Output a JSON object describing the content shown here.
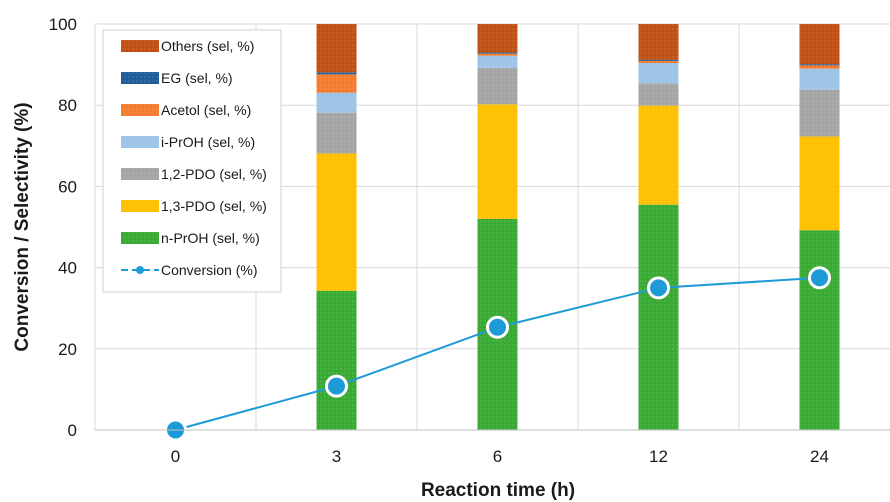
{
  "chart_data": {
    "type": "bar",
    "stacked": true,
    "categories": [
      "0",
      "3",
      "6",
      "12",
      "24"
    ],
    "xlabel": "Reaction time (h)",
    "ylabel": "Conversion / Selectivity (%)",
    "ylim": [
      0,
      100
    ],
    "yticks": [
      "0",
      "20",
      "40",
      "60",
      "80",
      "100"
    ],
    "grid": true,
    "legend_position": "top-left",
    "series": [
      {
        "name": "n-PrOH (sel, %)",
        "color": "#3aaa35",
        "values": [
          0,
          34.3,
          52.0,
          55.5,
          49.2
        ]
      },
      {
        "name": "1,3-PDO (sel, %)",
        "color": "#ffc000",
        "values": [
          0,
          33.8,
          28.2,
          24.4,
          23.1
        ]
      },
      {
        "name": "1,2-PDO (sel, %)",
        "color": "#a5a5a5",
        "values": [
          0,
          10.0,
          9.0,
          5.5,
          11.5
        ]
      },
      {
        "name": "i-PrOH (sel, %)",
        "color": "#9dc3e6",
        "values": [
          0,
          5.0,
          3.0,
          5.0,
          5.2
        ]
      },
      {
        "name": "Acetol (sel, %)",
        "color": "#f47c30",
        "values": [
          0,
          4.5,
          0.5,
          0.5,
          0.8
        ]
      },
      {
        "name": "EG (sel, %)",
        "color": "#1f5c99",
        "values": [
          0,
          0.5,
          0.3,
          0.3,
          0.3
        ]
      },
      {
        "name": "Others (sel, %)",
        "color": "#c05014",
        "values": [
          0,
          11.9,
          7.0,
          8.8,
          9.9
        ]
      }
    ],
    "line_series": {
      "name": "Conversion (%)",
      "color": "#1e9bd7",
      "values": [
        0,
        10.8,
        25.3,
        35.0,
        37.5
      ]
    },
    "legend_order": [
      "Others (sel, %)",
      "EG (sel, %)",
      "Acetol (sel, %)",
      "i-PrOH (sel, %)",
      "1,2-PDO (sel, %)",
      "1,3-PDO (sel, %)",
      "n-PrOH (sel, %)",
      "Conversion (%)"
    ]
  }
}
